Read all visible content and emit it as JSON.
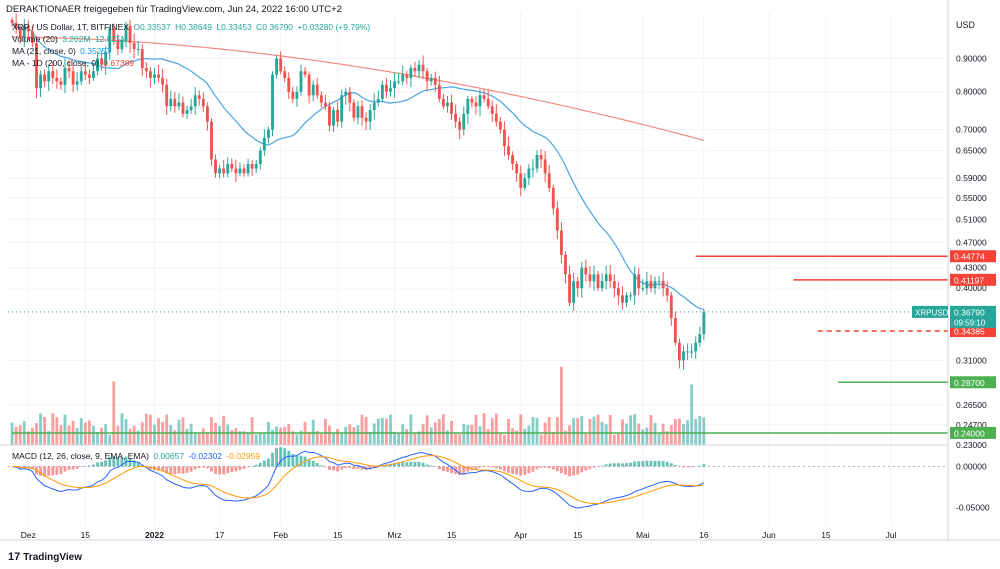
{
  "header": {
    "publisher_line": "DERAKTIONAER freigegeben für TradingView.com, Jun 24, 2022 16:00 UTC+2",
    "symbol_line": "XRP / US Dollar, 1T, BITFINEX",
    "ohlc": [
      "O0.33537",
      "H0.38649",
      "L0.33453",
      "C0.36790",
      "+0.03280 (+9.79%)"
    ],
    "volume_label": "Volume (20)",
    "volume_values": [
      "3.202M",
      "12.525M"
    ],
    "ma21_label": "MA (21, close, 0)",
    "ma21_value": "0.35257",
    "ma200_label": "MA - 1D (200, close, 0)",
    "ma200_value": "0.67389"
  },
  "macd_legend": {
    "label": "MACD (12, 26, close, 9, EMA, EMA)",
    "values": [
      "0.00657",
      "-0.02302",
      "-0.02959"
    ]
  },
  "footer": {
    "brand": "TradingView",
    "logo_glyph": "17"
  },
  "colors": {
    "up": "#26a69a",
    "down": "#ef5350",
    "ma21": "#4aa3df",
    "ma200": "#f28b82",
    "macd_line": "#2962ff",
    "signal_line": "#ff9800",
    "support": "#4caf50",
    "resistance": "#f44336"
  },
  "chart_data": [
    {
      "type": "candlestick",
      "title": "XRP / US Dollar, 1T, BITFINEX",
      "y_axis_label": "USD",
      "y_scale": "log",
      "ylim": [
        0.23,
        1.06
      ],
      "x_range": [
        "2021-11-26",
        "2022-07-15"
      ],
      "x_tick_labels": [
        "Dez",
        "15",
        "2022",
        "17",
        "Feb",
        "15",
        "Mrz",
        "15",
        "Apr",
        "15",
        "Mai",
        "16",
        "Jun",
        "15",
        "Jul"
      ],
      "x_tick_dates": [
        "2021-12-01",
        "2021-12-15",
        "2022-01-01",
        "2022-01-17",
        "2022-02-01",
        "2022-02-15",
        "2022-03-01",
        "2022-03-15",
        "2022-04-01",
        "2022-04-15",
        "2022-05-01",
        "2022-05-16",
        "2022-06-01",
        "2022-06-15",
        "2022-07-01"
      ],
      "y_tick_labels": [
        "0.90000",
        "0.80000",
        "0.70000",
        "0.65000",
        "0.59000",
        "0.55000",
        "0.51000",
        "0.47000",
        "0.43000",
        "0.40000",
        "0.31000",
        "0.26500",
        "0.24700",
        "0.23000"
      ],
      "y_tick_values": [
        0.9,
        0.8,
        0.7,
        0.65,
        0.59,
        0.55,
        0.51,
        0.47,
        0.43,
        0.4,
        0.31,
        0.265,
        0.247,
        0.23
      ],
      "start_date": "2021-11-27",
      "closes": [
        1.02,
        1.0,
        0.97,
        1.01,
        0.99,
        0.95,
        0.81,
        0.85,
        0.83,
        0.86,
        0.84,
        0.83,
        0.82,
        0.87,
        0.86,
        0.82,
        0.83,
        0.86,
        0.85,
        0.84,
        0.86,
        0.9,
        0.88,
        0.92,
        1.0,
        0.96,
        0.93,
        0.96,
        1.01,
        0.95,
        0.93,
        0.93,
        0.87,
        0.86,
        0.84,
        0.85,
        0.84,
        0.82,
        0.76,
        0.78,
        0.76,
        0.77,
        0.74,
        0.75,
        0.76,
        0.79,
        0.78,
        0.76,
        0.72,
        0.63,
        0.6,
        0.61,
        0.6,
        0.62,
        0.61,
        0.6,
        0.61,
        0.6,
        0.62,
        0.61,
        0.62,
        0.65,
        0.68,
        0.7,
        0.85,
        0.9,
        0.86,
        0.84,
        0.8,
        0.78,
        0.8,
        0.86,
        0.85,
        0.79,
        0.82,
        0.79,
        0.77,
        0.76,
        0.71,
        0.75,
        0.72,
        0.79,
        0.8,
        0.77,
        0.73,
        0.76,
        0.73,
        0.72,
        0.75,
        0.77,
        0.78,
        0.82,
        0.8,
        0.81,
        0.83,
        0.83,
        0.85,
        0.84,
        0.87,
        0.86,
        0.88,
        0.86,
        0.83,
        0.84,
        0.82,
        0.78,
        0.76,
        0.77,
        0.74,
        0.72,
        0.7,
        0.74,
        0.78,
        0.77,
        0.76,
        0.79,
        0.78,
        0.76,
        0.74,
        0.72,
        0.7,
        0.66,
        0.64,
        0.62,
        0.6,
        0.57,
        0.59,
        0.61,
        0.61,
        0.64,
        0.63,
        0.6,
        0.57,
        0.53,
        0.49,
        0.45,
        0.42,
        0.38,
        0.41,
        0.4,
        0.43,
        0.42,
        0.41,
        0.42,
        0.4,
        0.41,
        0.42,
        0.41,
        0.4,
        0.39,
        0.38,
        0.39,
        0.39,
        0.42,
        0.4,
        0.4,
        0.41,
        0.4,
        0.41,
        0.41,
        0.4,
        0.39,
        0.36,
        0.33,
        0.31,
        0.32,
        0.32,
        0.32,
        0.33,
        0.34,
        0.3679
      ],
      "series": [
        {
          "name": "MA (21, close, 0)",
          "value": 0.35257
        },
        {
          "name": "MA - 1D (200, close, 0)",
          "value": 0.67389
        }
      ],
      "price_labels": [
        {
          "text": "0.44774",
          "value": 0.44774,
          "kind": "resistance",
          "start_date": "2022-05-14"
        },
        {
          "text": "0.41197",
          "value": 0.41197,
          "kind": "resistance",
          "start_date": "2022-06-07"
        },
        {
          "text": "0.34385",
          "value": 0.34385,
          "kind": "dashed",
          "start_date": "2022-06-13"
        },
        {
          "text": "0.28700",
          "value": 0.287,
          "kind": "support",
          "start_date": "2022-06-18"
        },
        {
          "text": "0.24000",
          "value": 0.24,
          "kind": "support",
          "start_date": "2021-11-27"
        }
      ],
      "current_price": {
        "symbol": "XRPUSD",
        "value": 0.3679,
        "text": "0.36790",
        "countdown": "09:59:10"
      }
    },
    {
      "type": "bar",
      "title": "Volume (20)",
      "values": [
        3.202,
        12.525
      ]
    },
    {
      "type": "line",
      "title": "MACD (12, 26, close, 9, EMA, EMA)",
      "y_tick_labels": [
        "0.00000",
        "-0.05000"
      ],
      "y_tick_values": [
        0,
        -0.05
      ],
      "ylim": [
        -0.071,
        0.026
      ],
      "series": [
        {
          "name": "Histogram",
          "value": 0.00657
        },
        {
          "name": "MACD",
          "value": -0.02302
        },
        {
          "name": "Signal",
          "value": -0.02959
        }
      ]
    }
  ]
}
